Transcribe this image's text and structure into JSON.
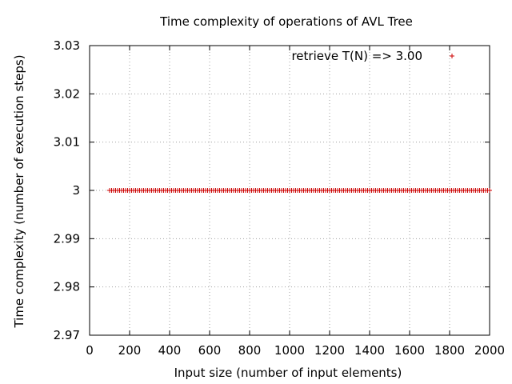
{
  "chart_data": {
    "type": "scatter",
    "title": "Time complexity of operations of AVL Tree",
    "xlabel": "Input size (number of input elements)",
    "ylabel": "Time complexity (number of execution steps)",
    "xlim": [
      0,
      2000
    ],
    "ylim": [
      2.97,
      3.03
    ],
    "xticks": [
      0,
      200,
      400,
      600,
      800,
      1000,
      1200,
      1400,
      1600,
      1800,
      2000
    ],
    "yticks": [
      2.97,
      2.98,
      2.99,
      3,
      3.01,
      3.02,
      3.03
    ],
    "xtick_labels": [
      "0",
      "200",
      "400",
      "600",
      "800",
      "1000",
      "1200",
      "1400",
      "1600",
      "1800",
      "2000"
    ],
    "ytick_labels": [
      "2.97",
      "2.98",
      "2.99",
      "3",
      "3.01",
      "3.02",
      "3.03"
    ],
    "grid": true,
    "legend_position": "top-right",
    "series": [
      {
        "name": "retrieve T(N) => 3.00",
        "marker": "+",
        "color": "#cc0000",
        "x": [
          100,
          110,
          120,
          130,
          140,
          150,
          160,
          170,
          180,
          190,
          200,
          210,
          220,
          230,
          240,
          250,
          260,
          270,
          280,
          290,
          300,
          310,
          320,
          330,
          340,
          350,
          360,
          370,
          380,
          390,
          400,
          410,
          420,
          430,
          440,
          450,
          460,
          470,
          480,
          490,
          500,
          510,
          520,
          530,
          540,
          550,
          560,
          570,
          580,
          590,
          600,
          610,
          620,
          630,
          640,
          650,
          660,
          670,
          680,
          690,
          700,
          710,
          720,
          730,
          740,
          750,
          760,
          770,
          780,
          790,
          800,
          810,
          820,
          830,
          840,
          850,
          860,
          870,
          880,
          890,
          900,
          910,
          920,
          930,
          940,
          950,
          960,
          970,
          980,
          990,
          1000,
          1010,
          1020,
          1030,
          1040,
          1050,
          1060,
          1070,
          1080,
          1090,
          1100,
          1110,
          1120,
          1130,
          1140,
          1150,
          1160,
          1170,
          1180,
          1190,
          1200,
          1210,
          1220,
          1230,
          1240,
          1250,
          1260,
          1270,
          1280,
          1290,
          1300,
          1310,
          1320,
          1330,
          1340,
          1350,
          1360,
          1370,
          1380,
          1390,
          1400,
          1410,
          1420,
          1430,
          1440,
          1450,
          1460,
          1470,
          1480,
          1490,
          1500,
          1510,
          1520,
          1530,
          1540,
          1550,
          1560,
          1570,
          1580,
          1590,
          1600,
          1610,
          1620,
          1630,
          1640,
          1650,
          1660,
          1670,
          1680,
          1690,
          1700,
          1710,
          1720,
          1730,
          1740,
          1750,
          1760,
          1770,
          1780,
          1790,
          1800,
          1810,
          1820,
          1830,
          1840,
          1850,
          1860,
          1870,
          1880,
          1890,
          1900,
          1910,
          1920,
          1930,
          1940,
          1950,
          1960,
          1970,
          1980,
          1990,
          2000
        ],
        "y_constant": 3
      }
    ],
    "fit_line": {
      "y": 3,
      "color": "#00a000"
    }
  }
}
